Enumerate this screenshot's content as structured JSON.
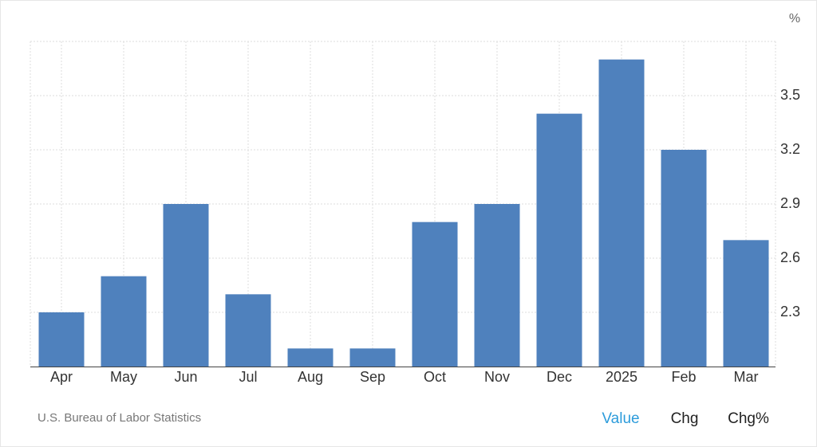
{
  "chart_data": {
    "type": "bar",
    "y_unit": "%",
    "categories": [
      "Apr",
      "May",
      "Jun",
      "Jul",
      "Aug",
      "Sep",
      "Oct",
      "Nov",
      "Dec",
      "2025",
      "Feb",
      "Mar"
    ],
    "values": [
      2.3,
      2.5,
      2.9,
      2.4,
      2.1,
      2.1,
      2.8,
      2.9,
      3.4,
      3.7,
      3.2,
      2.7
    ],
    "color": "#4f81bd",
    "ylim": [
      2.0,
      3.8
    ],
    "yticks": [
      2.3,
      2.6,
      2.9,
      3.2,
      3.5
    ],
    "grid": true
  },
  "footer": {
    "source": "U.S. Bureau of Labor Statistics",
    "tabs": [
      "Value",
      "Chg",
      "Chg%"
    ],
    "active_tab": 0
  }
}
